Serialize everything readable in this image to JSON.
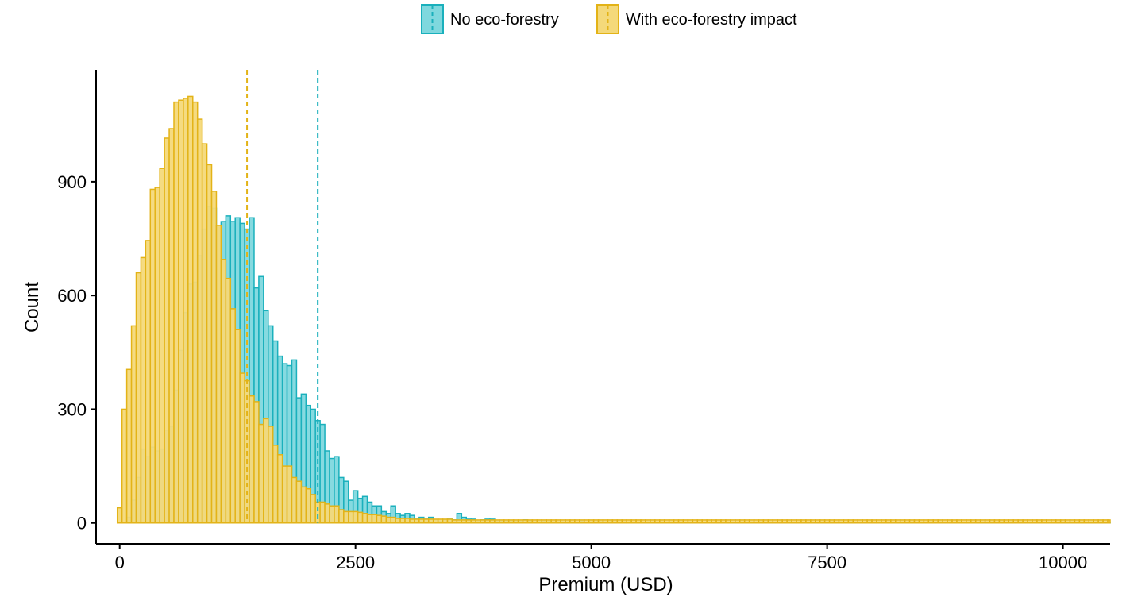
{
  "chart_data": {
    "type": "histogram",
    "xlabel": "Premium (USD)",
    "ylabel": "Count",
    "xlim": [
      -250,
      10500
    ],
    "ylim": [
      -55,
      1195
    ],
    "x_ticks": [
      0,
      2500,
      5000,
      7500,
      10000
    ],
    "x_tick_labels": [
      "0",
      "2500",
      "5000",
      "7500",
      "10000"
    ],
    "y_ticks": [
      0,
      300,
      600,
      900
    ],
    "y_tick_labels": [
      "0",
      "300",
      "600",
      "900"
    ],
    "bin_start": -25,
    "bin_width": 50,
    "grid": false,
    "legend_position": "top",
    "series": [
      {
        "name": "No eco-forestry",
        "fill": "#7fd8de",
        "stroke": "#1ab0bc",
        "mean_line": 2100,
        "counts": [
          0,
          0,
          15,
          60,
          120,
          195,
          175,
          200,
          190,
          195,
          245,
          255,
          350,
          455,
          555,
          630,
          635,
          705,
          775,
          835,
          830,
          785,
          795,
          810,
          795,
          805,
          790,
          775,
          805,
          620,
          650,
          560,
          520,
          480,
          440,
          420,
          415,
          430,
          330,
          340,
          310,
          300,
          270,
          260,
          190,
          170,
          175,
          120,
          110,
          60,
          85,
          65,
          70,
          55,
          45,
          45,
          30,
          25,
          45,
          25,
          20,
          25,
          20,
          10,
          15,
          10,
          15,
          8,
          5,
          8,
          10,
          8,
          25,
          15,
          10,
          10,
          5,
          8,
          10,
          10,
          5,
          5,
          5,
          6,
          5,
          5,
          8,
          5,
          3,
          3,
          5,
          4,
          3,
          3,
          3,
          3,
          2,
          2,
          5,
          2,
          2,
          3,
          3,
          3,
          3,
          3,
          2,
          3,
          2,
          2,
          2,
          2,
          3,
          2,
          2,
          2,
          2,
          2,
          2,
          2,
          2,
          2,
          2,
          2,
          2,
          2,
          2,
          2,
          2,
          2,
          2,
          2,
          2,
          2,
          2,
          2,
          2,
          2,
          2,
          2,
          2,
          2,
          2,
          2,
          2,
          2,
          2,
          2,
          2,
          2,
          2,
          2,
          2,
          2,
          2,
          2,
          2,
          2,
          2,
          2,
          2,
          2,
          2,
          2,
          2,
          2,
          2,
          2,
          2,
          2,
          2,
          2,
          2,
          2,
          2,
          2,
          2,
          2,
          2,
          2,
          2,
          2,
          2,
          2,
          2,
          2,
          2,
          2,
          2,
          2,
          2,
          2,
          2,
          2,
          2,
          2,
          2,
          2,
          2,
          2,
          2,
          2,
          2,
          2,
          2,
          2,
          2,
          2,
          2,
          2,
          2,
          2,
          2,
          2
        ]
      },
      {
        "name": "With eco-forestry impact",
        "fill": "#f4d97a",
        "stroke": "#e3b317",
        "mean_line": 1350,
        "counts": [
          40,
          300,
          405,
          520,
          660,
          700,
          745,
          880,
          885,
          935,
          1015,
          1040,
          1110,
          1115,
          1120,
          1125,
          1110,
          1065,
          1000,
          945,
          875,
          785,
          695,
          645,
          565,
          510,
          395,
          375,
          335,
          320,
          260,
          275,
          255,
          205,
          180,
          150,
          150,
          120,
          110,
          95,
          90,
          75,
          55,
          55,
          50,
          45,
          45,
          35,
          30,
          30,
          30,
          28,
          25,
          22,
          22,
          20,
          18,
          15,
          15,
          12,
          12,
          12,
          10,
          10,
          10,
          10,
          10,
          10,
          10,
          10,
          10,
          8,
          8,
          8,
          8,
          8,
          8,
          8,
          8,
          8,
          8,
          8,
          8,
          8,
          8,
          8,
          8,
          8,
          8,
          8,
          8,
          8,
          8,
          8,
          8,
          8,
          8,
          8,
          8,
          8,
          8,
          8,
          8,
          8,
          8,
          8,
          8,
          8,
          8,
          8,
          8,
          8,
          8,
          8,
          8,
          8,
          8,
          8,
          8,
          8,
          8,
          8,
          8,
          8,
          8,
          8,
          8,
          8,
          8,
          8,
          8,
          8,
          8,
          8,
          8,
          8,
          8,
          8,
          8,
          8,
          8,
          8,
          8,
          8,
          8,
          8,
          8,
          8,
          8,
          8,
          8,
          8,
          8,
          8,
          8,
          8,
          8,
          8,
          8,
          8,
          8,
          8,
          8,
          8,
          8,
          8,
          8,
          8,
          8,
          8,
          8,
          8,
          8,
          8,
          8,
          8,
          8,
          8,
          8,
          8,
          8,
          8,
          8,
          8,
          8,
          8,
          8,
          8,
          8,
          8,
          8,
          8,
          8,
          8,
          8,
          8,
          8,
          8,
          8,
          8,
          8,
          8,
          8,
          8,
          8,
          8,
          8,
          8,
          8,
          8,
          8,
          8,
          8
        ]
      }
    ]
  }
}
